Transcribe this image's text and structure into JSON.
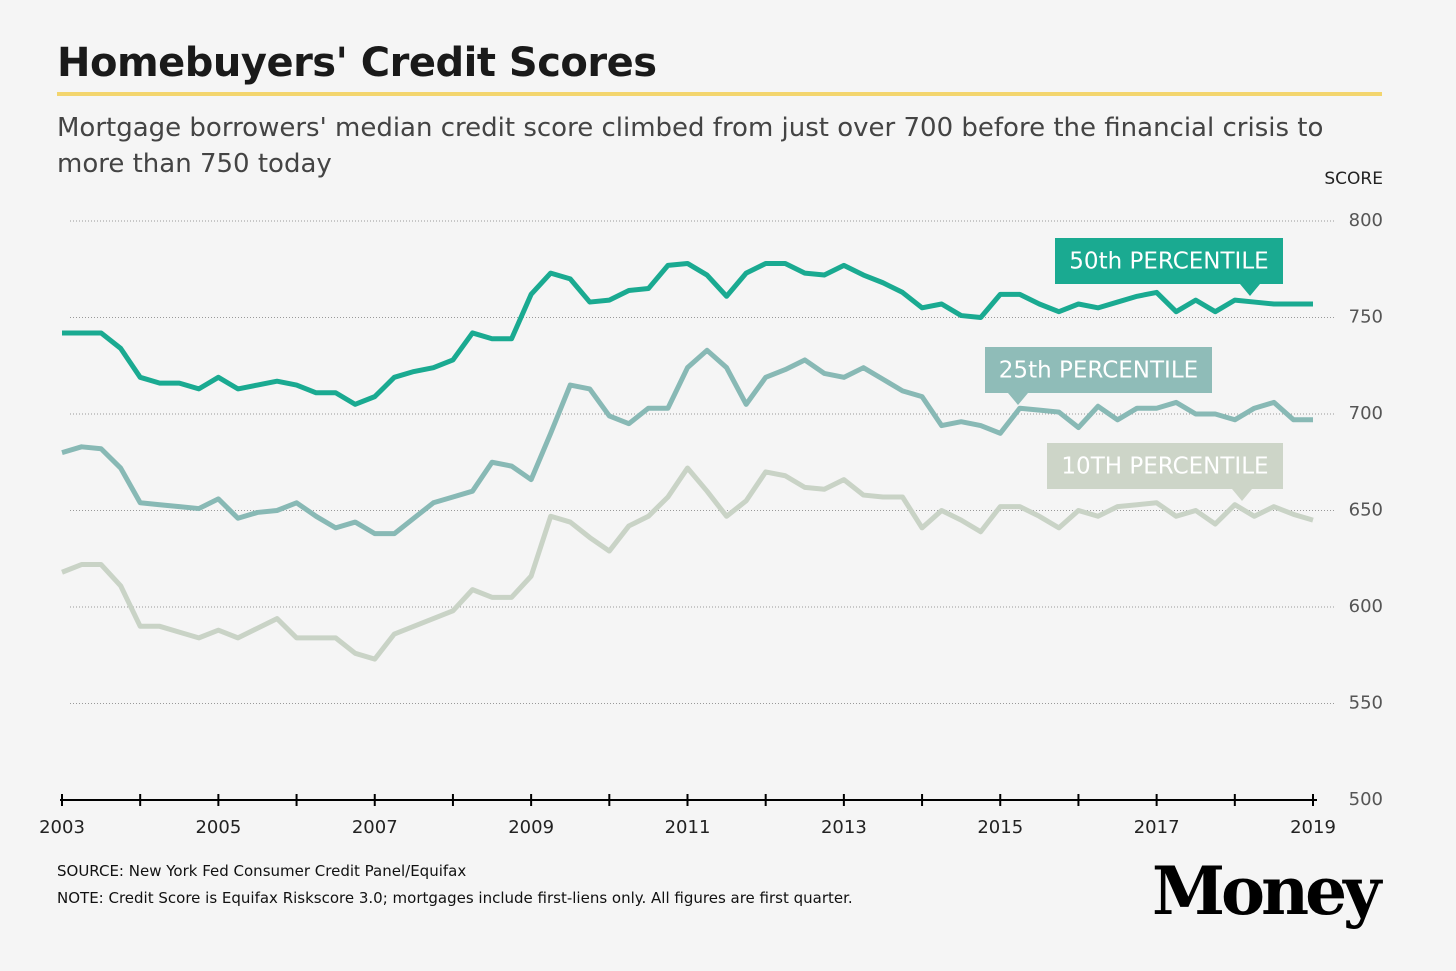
{
  "chart_data": {
    "type": "line",
    "title": "Homebuyers' Credit Scores",
    "subtitle": "Mortgage borrowers' median credit score climbed from just over 700 before the financial crisis to more than 750 today",
    "y_label": "SCORE",
    "source": "SOURCE: New York Fed Consumer Credit Panel/Equifax",
    "note": "NOTE: Credit Score is Equifax Riskscore 3.0; mortgages include first-liens only. All figures are first quarter.",
    "brand": "Money",
    "x": [
      2003,
      2003.25,
      2003.5,
      2003.75,
      2004,
      2004.25,
      2004.5,
      2004.75,
      2005,
      2005.25,
      2005.5,
      2005.75,
      2006,
      2006.25,
      2006.5,
      2006.75,
      2007,
      2007.25,
      2007.5,
      2007.75,
      2008,
      2008.25,
      2008.5,
      2008.75,
      2009,
      2009.25,
      2009.5,
      2009.75,
      2010,
      2010.25,
      2010.5,
      2010.75,
      2011,
      2011.25,
      2011.5,
      2011.75,
      2012,
      2012.25,
      2012.5,
      2012.75,
      2013,
      2013.25,
      2013.5,
      2013.75,
      2014,
      2014.25,
      2014.5,
      2014.75,
      2015,
      2015.25,
      2015.5,
      2015.75,
      2016,
      2016.25,
      2016.5,
      2016.75,
      2017,
      2017.25,
      2017.5,
      2017.75,
      2018,
      2018.25,
      2018.5,
      2018.75,
      2019
    ],
    "series": [
      {
        "name": "50th PERCENTILE",
        "color": "#1aaa91",
        "values": [
          742,
          742,
          742,
          734,
          719,
          716,
          716,
          713,
          719,
          713,
          715,
          717,
          715,
          711,
          711,
          705,
          709,
          719,
          722,
          724,
          728,
          742,
          739,
          739,
          762,
          773,
          770,
          758,
          759,
          764,
          765,
          777,
          778,
          772,
          761,
          773,
          778,
          778,
          773,
          772,
          777,
          772,
          768,
          763,
          755,
          757,
          751,
          750,
          762,
          762,
          757,
          753,
          757,
          755,
          758,
          761,
          763,
          753,
          759,
          753,
          759,
          758,
          757,
          757,
          757
        ]
      },
      {
        "name": "25th PERCENTILE",
        "color": "#88b9b5",
        "values": [
          680,
          683,
          682,
          672,
          654,
          653,
          652,
          651,
          656,
          646,
          649,
          650,
          654,
          647,
          641,
          644,
          638,
          638,
          646,
          654,
          657,
          660,
          675,
          673,
          666,
          690,
          715,
          713,
          699,
          695,
          703,
          703,
          724,
          733,
          724,
          705,
          719,
          723,
          728,
          721,
          719,
          724,
          718,
          712,
          709,
          694,
          696,
          694,
          690,
          703,
          702,
          701,
          693,
          704,
          697,
          703,
          703,
          706,
          700,
          700,
          697,
          703,
          706,
          697,
          697
        ]
      },
      {
        "name": "10TH PERCENTILE",
        "color": "#c9d3c6",
        "values": [
          618,
          622,
          622,
          611,
          590,
          590,
          587,
          584,
          588,
          584,
          589,
          594,
          584,
          584,
          584,
          576,
          573,
          586,
          590,
          594,
          598,
          609,
          605,
          605,
          616,
          647,
          644,
          636,
          629,
          642,
          647,
          657,
          672,
          660,
          647,
          655,
          670,
          668,
          662,
          661,
          666,
          658,
          657,
          657,
          641,
          650,
          645,
          639,
          652,
          652,
          647,
          641,
          650,
          647,
          652,
          653,
          654,
          647,
          650,
          643,
          653,
          647,
          652,
          648,
          645
        ]
      }
    ],
    "xlim": [
      2003,
      2019
    ],
    "xticks": [
      2003,
      2005,
      2007,
      2009,
      2011,
      2013,
      2015,
      2017,
      2019
    ],
    "xticks_minor": [
      2004,
      2006,
      2008,
      2010,
      2012,
      2014,
      2016,
      2018
    ],
    "ylim": [
      500,
      800
    ],
    "yticks": [
      500,
      550,
      600,
      650,
      700,
      750,
      800
    ],
    "grid": true
  }
}
